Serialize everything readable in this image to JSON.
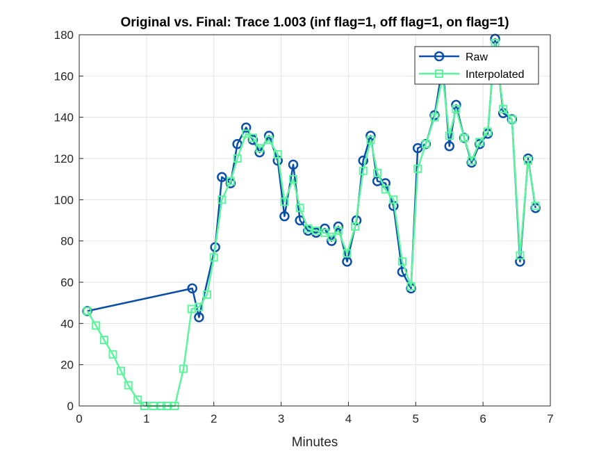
{
  "chart_data": {
    "type": "line",
    "title": "Original vs. Final: Trace 1.003 (inf flag=1, off flag=1, on flag=1)",
    "xlabel": "Minutes",
    "ylabel": "",
    "xlim": [
      0,
      7
    ],
    "ylim": [
      0,
      180
    ],
    "xticks": [
      "0",
      "1",
      "2",
      "3",
      "4",
      "5",
      "6",
      "7"
    ],
    "yticks": [
      "0",
      "20",
      "40",
      "60",
      "80",
      "100",
      "120",
      "140",
      "160",
      "180"
    ],
    "grid": true,
    "legend_position": "top-right",
    "series": [
      {
        "name": "Raw",
        "color": "#0a4ea6",
        "marker": "circle",
        "x": [
          0.12,
          1.68,
          1.78,
          2.02,
          2.12,
          2.25,
          2.35,
          2.48,
          2.58,
          2.68,
          2.82,
          2.95,
          3.05,
          3.18,
          3.28,
          3.4,
          3.52,
          3.65,
          3.75,
          3.85,
          3.98,
          4.12,
          4.22,
          4.33,
          4.43,
          4.55,
          4.67,
          4.8,
          4.93,
          5.03,
          5.15,
          5.28,
          5.4,
          5.5,
          5.6,
          5.72,
          5.83,
          5.95,
          6.07,
          6.18,
          6.3,
          6.43,
          6.55,
          6.67,
          6.78
        ],
        "y": [
          46,
          57,
          43,
          77,
          111,
          108,
          127,
          135,
          129,
          123,
          131,
          119,
          92,
          117,
          90,
          85,
          84,
          86,
          80,
          87,
          70,
          90,
          119,
          131,
          109,
          108,
          97,
          65,
          57,
          125,
          127,
          141,
          165,
          126,
          146,
          130,
          118,
          127,
          132,
          178,
          142,
          139,
          70,
          120,
          96
        ]
      },
      {
        "name": "Interpolated",
        "color": "#5cf59e",
        "marker": "square",
        "x": [
          0.12,
          0.25,
          0.37,
          0.5,
          0.62,
          0.73,
          0.87,
          0.97,
          1.1,
          1.22,
          1.3,
          1.42,
          1.55,
          1.67,
          1.78,
          1.9,
          2.0,
          2.12,
          2.25,
          2.35,
          2.48,
          2.58,
          2.68,
          2.82,
          2.95,
          3.05,
          3.18,
          3.28,
          3.4,
          3.52,
          3.65,
          3.75,
          3.85,
          3.98,
          4.1,
          4.22,
          4.33,
          4.43,
          4.55,
          4.67,
          4.8,
          4.93,
          5.03,
          5.15,
          5.28,
          5.4,
          5.5,
          5.6,
          5.72,
          5.83,
          5.95,
          6.07,
          6.18,
          6.3,
          6.43,
          6.55,
          6.67,
          6.78
        ],
        "y": [
          46,
          39,
          32,
          25,
          17,
          10,
          3,
          0,
          0,
          0,
          0,
          0,
          18,
          47,
          48,
          54,
          72,
          100,
          109,
          120,
          132,
          130,
          125,
          129,
          122,
          99,
          110,
          96,
          86,
          85,
          84,
          82,
          85,
          74,
          87,
          114,
          129,
          113,
          105,
          100,
          70,
          58,
          115,
          127,
          140,
          160,
          131,
          144,
          130,
          119,
          128,
          133,
          176,
          144,
          139,
          73,
          119,
          97
        ]
      }
    ]
  }
}
